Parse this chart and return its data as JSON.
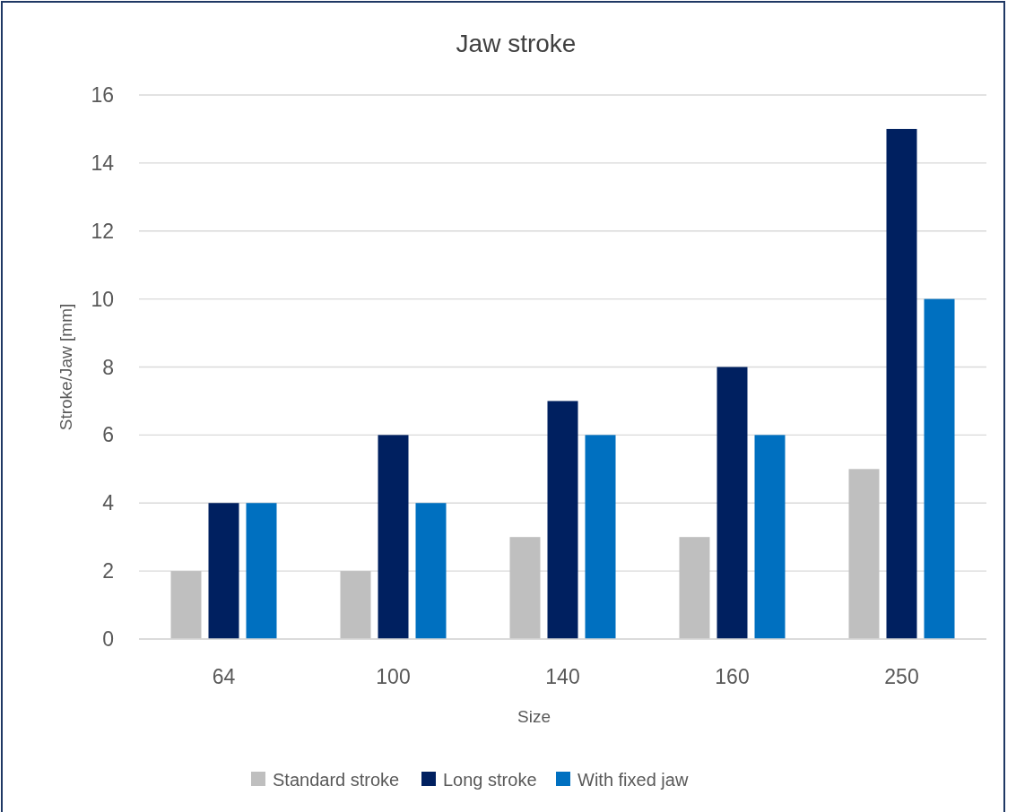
{
  "chart_data": {
    "type": "bar",
    "title": "Jaw stroke",
    "xlabel": "Size",
    "ylabel": "Stroke/Jaw [mm]",
    "categories": [
      "64",
      "100",
      "140",
      "160",
      "250"
    ],
    "series": [
      {
        "name": "Standard stroke",
        "color": "#bfbfbf",
        "values": [
          2,
          2,
          3,
          3,
          5
        ]
      },
      {
        "name": "Long stroke",
        "color": "#002060",
        "values": [
          4,
          6,
          7,
          8,
          15
        ]
      },
      {
        "name": "With fixed jaw",
        "color": "#0070c0",
        "values": [
          4,
          4,
          6,
          6,
          10
        ]
      }
    ],
    "ylim": [
      0,
      16
    ],
    "yticks": [
      0,
      2,
      4,
      6,
      8,
      10,
      12,
      14,
      16
    ],
    "grid": "y",
    "legend": "bottom"
  }
}
